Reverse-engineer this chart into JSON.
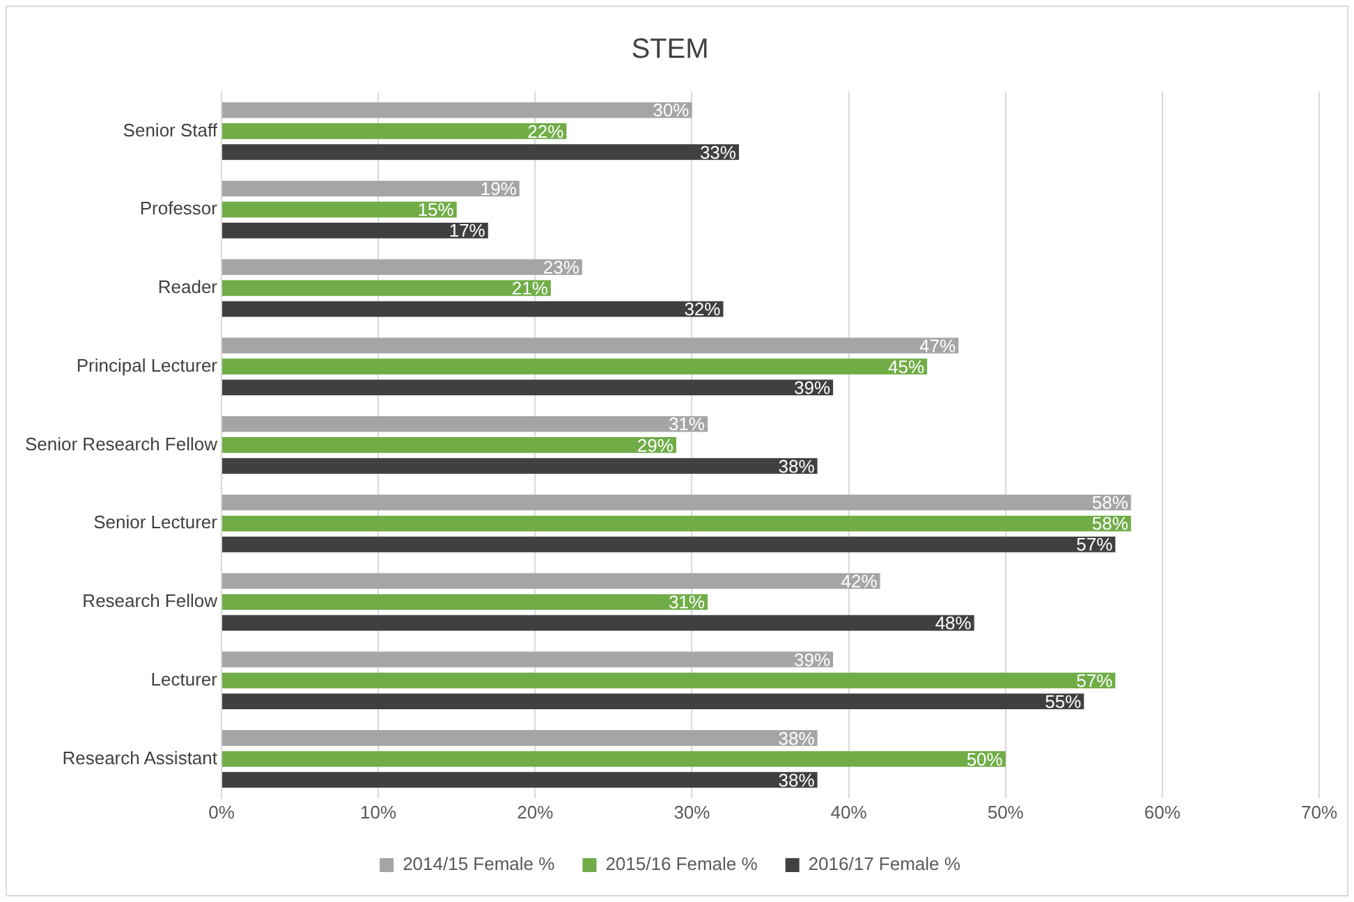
{
  "chart_data": {
    "type": "bar",
    "orientation": "horizontal",
    "title": "STEM",
    "categories": [
      "Senior Staff",
      "Professor",
      "Reader",
      "Principal Lecturer",
      "Senior Research Fellow",
      "Senior Lecturer",
      "Research Fellow",
      "Lecturer",
      "Research Assistant"
    ],
    "series": [
      {
        "name": "2014/15 Female %",
        "color": "#a5a5a5",
        "values": [
          30,
          19,
          23,
          47,
          31,
          58,
          42,
          39,
          38
        ],
        "value_labels": [
          "30%",
          "19%",
          "23%",
          "47%",
          "31%",
          "58%",
          "42%",
          "39%",
          "38%"
        ]
      },
      {
        "name": "2015/16 Female %",
        "color": "#70ad47",
        "values": [
          22,
          15,
          21,
          45,
          29,
          58,
          31,
          57,
          50
        ],
        "value_labels": [
          "22%",
          "15%",
          "21%",
          "45%",
          "29%",
          "58%",
          "31%",
          "57%",
          "50%"
        ]
      },
      {
        "name": "2016/17 Female %",
        "color": "#404040",
        "values": [
          33,
          17,
          32,
          39,
          38,
          57,
          48,
          55,
          38
        ],
        "value_labels": [
          "33%",
          "17%",
          "32%",
          "39%",
          "38%",
          "57%",
          "48%",
          "55%",
          "38%"
        ]
      }
    ],
    "xlim": [
      0,
      70
    ],
    "xticks": [
      {
        "value": 0,
        "label": "0%"
      },
      {
        "value": 10,
        "label": "10%"
      },
      {
        "value": 20,
        "label": "20%"
      },
      {
        "value": 30,
        "label": "30%"
      },
      {
        "value": 40,
        "label": "40%"
      },
      {
        "value": 50,
        "label": "50%"
      },
      {
        "value": 60,
        "label": "60%"
      },
      {
        "value": 70,
        "label": "70%"
      }
    ],
    "grid": "x",
    "legend": "bottom"
  }
}
